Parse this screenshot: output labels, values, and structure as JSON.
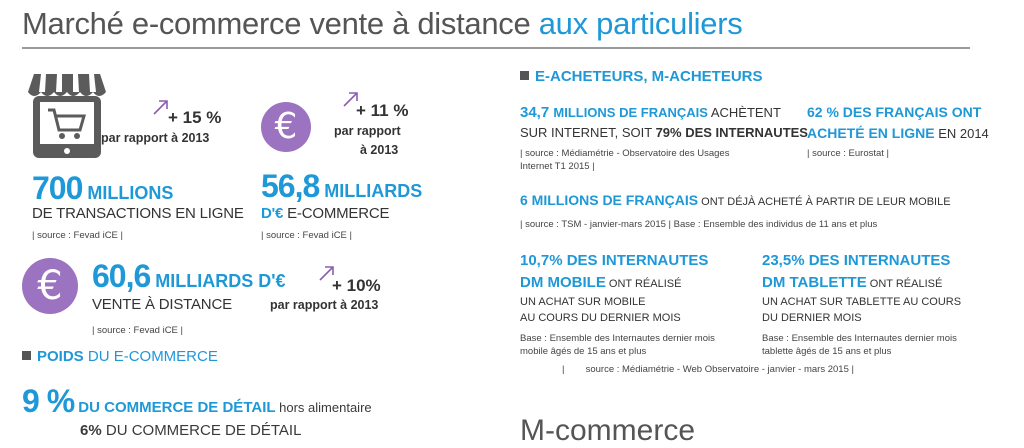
{
  "title": {
    "main": "Marché e-commerce vente à distance ",
    "accent": "aux particuliers"
  },
  "left": {
    "s1": {
      "change": "+ 15 %",
      "change_sub": "par rapport à 2013",
      "value": "700",
      "unit": " MILLIONS",
      "desc": "DE TRANSACTIONS EN LIGNE",
      "source": "| source : Fevad iCE |"
    },
    "s2": {
      "change": "+ 11 %",
      "change_sub1": "par rapport",
      "change_sub2": "à 2013",
      "value": "56,8",
      "unit": " MILLIARDS",
      "unit2": "D'€",
      "desc": " E-COMMERCE",
      "source": "| source : Fevad iCE |"
    },
    "s3": {
      "value": "60,6",
      "unit": " MILLIARDS D'€",
      "desc": "VENTE À DISTANCE",
      "change": "+ 10%",
      "change_sub": "par rapport à 2013",
      "source": "| source : Fevad iCE |"
    },
    "poids": {
      "label_bold": "POIDS",
      "label_rest": " DU E-COMMERCE"
    },
    "s4": {
      "value": "9 %",
      "bold": " DU COMMERCE DE DÉTAIL",
      "rest": " hors alimentaire",
      "line2_pct": "6%",
      "line2_rest": " DU COMMERCE DE DÉTAIL"
    }
  },
  "right": {
    "heading": "E-ACHETEURS, M-ACHETEURS",
    "a": {
      "h1": "34,7 ",
      "h1b": "MILLIONS DE FRANÇAIS",
      "h1r": " ACHÈTENT",
      "l2": "SUR INTERNET, SOIT ",
      "l2b": "79% DES INTERNAUTES",
      "src1": "| source : Médiamétrie - Observatoire des Usages",
      "src2": "Internet T1 2015 |"
    },
    "b": {
      "h1": "62 % DES FRANÇAIS ONT",
      "h2": "ACHETÉ EN LIGNE",
      "h2r": " EN 2014",
      "src": "| source : Eurostat |"
    },
    "c": {
      "h": "6 MILLIONS DE FRANÇAIS",
      "r": " ONT DÉJÀ ACHETÉ À PARTIR DE LEUR MOBILE",
      "src": "| source : TSM - janvier-mars 2015 | Base : Ensemble des individus de 11 ans et plus"
    },
    "d": {
      "h1": "10,7% DES INTERNAUTES",
      "h2": "DM MOBILE",
      "h2r": " ONT RÉALISÉ",
      "l3": "UN ACHAT SUR MOBILE",
      "l4": "AU COURS DU DERNIER MOIS",
      "base1": "Base : Ensemble des Internautes dernier mois",
      "base2": "mobile âgés de 15 ans et plus"
    },
    "e": {
      "h1": "23,5% DES INTERNAUTES",
      "h2": "DM TABLETTE",
      "h2r": " ONT RÉALISÉ",
      "l3": "UN ACHAT SUR TABLETTE AU COURS",
      "l4": "DU DERNIER MOIS",
      "base1": "Base : Ensemble des Internautes dernier mois",
      "base2": "tablette âgés de 15 ans et plus"
    },
    "src_all": "|        source : Médiamétrie - Web Observatoire - janvier - mars 2015 |",
    "mcommerce": "M-commerce"
  },
  "colors": {
    "accent": "#1e98d7",
    "purple": "#9b73c0",
    "dark": "#333333"
  },
  "icons": {
    "shop": "shop-tablet-icon",
    "euro": "euro-icon",
    "arrow": "arrow-up-right-icon"
  }
}
